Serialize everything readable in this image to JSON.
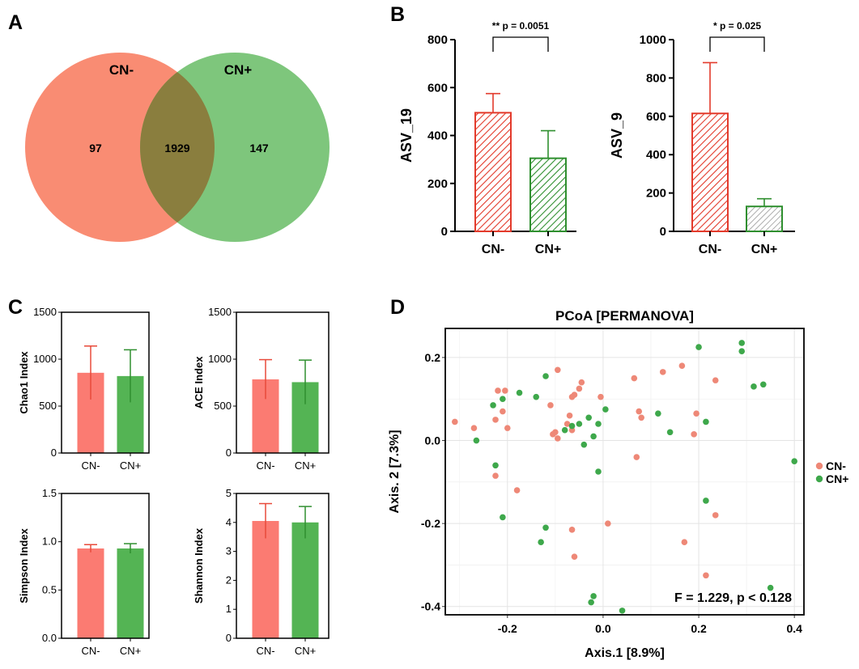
{
  "panel_labels": [
    "A",
    "B",
    "C",
    "D"
  ],
  "chart_data": [
    {
      "panel": "A",
      "type": "venn",
      "sets": [
        {
          "name": "CN-",
          "color": "#f98c73"
        },
        {
          "name": "CN+",
          "color": "#7ec67c"
        }
      ],
      "counts": {
        "only_left": "97",
        "intersection": "1929",
        "only_right": "147"
      },
      "overlap_color": "#8a7e3e"
    },
    {
      "panel": "B",
      "type": "bar",
      "ylabel": "ASV_19",
      "categories": [
        "CN-",
        "CN+"
      ],
      "values": [
        495,
        305
      ],
      "errors": [
        80,
        115
      ],
      "ylim": [
        0,
        800
      ],
      "yticks": [
        "0",
        "200",
        "400",
        "600",
        "800"
      ],
      "significance": "** p = 0.0051"
    },
    {
      "panel": "B",
      "type": "bar",
      "ylabel": "ASV_9",
      "categories": [
        "CN-",
        "CN+"
      ],
      "values": [
        615,
        130
      ],
      "errors": [
        265,
        40
      ],
      "ylim": [
        0,
        1000
      ],
      "yticks": [
        "0",
        "200",
        "400",
        "600",
        "800",
        "1000"
      ],
      "significance": "* p = 0.025"
    },
    {
      "panel": "C",
      "type": "bar",
      "ylabel": "Chao1 Index",
      "categories": [
        "CN-",
        "CN+"
      ],
      "values": [
        855,
        820
      ],
      "errors": [
        285,
        280
      ],
      "ylim": [
        0,
        1500
      ],
      "yticks": [
        "0",
        "500",
        "1000",
        "1500"
      ]
    },
    {
      "panel": "C",
      "type": "bar",
      "ylabel": "ACE Index",
      "categories": [
        "CN-",
        "CN+"
      ],
      "values": [
        785,
        755
      ],
      "errors": [
        210,
        235
      ],
      "ylim": [
        0,
        1500
      ],
      "yticks": [
        "0",
        "500",
        "1000",
        "1500"
      ]
    },
    {
      "panel": "C",
      "type": "bar",
      "ylabel": "Simpson Index",
      "categories": [
        "CN-",
        "CN+"
      ],
      "values": [
        0.93,
        0.93
      ],
      "errors": [
        0.04,
        0.05
      ],
      "ylim": [
        0,
        1.5
      ],
      "yticks": [
        "0.0",
        "0.5",
        "1.0",
        "1.5"
      ]
    },
    {
      "panel": "C",
      "type": "bar",
      "ylabel": "Shannon Index",
      "categories": [
        "CN-",
        "CN+"
      ],
      "values": [
        4.05,
        4.0
      ],
      "errors": [
        0.6,
        0.55
      ],
      "ylim": [
        0,
        5
      ],
      "yticks": [
        "0",
        "1",
        "2",
        "3",
        "4",
        "5"
      ]
    },
    {
      "panel": "D",
      "type": "scatter",
      "title": "PCoA [PERMANOVA]",
      "xlabel": "Axis.1 [8.9%]",
      "ylabel": "Axis. 2 [7.3%]",
      "xlim": [
        -0.33,
        0.42
      ],
      "ylim": [
        -0.42,
        0.27
      ],
      "xticks": [
        "-0.2",
        "0.0",
        "0.2",
        "0.4"
      ],
      "yticks": [
        "0.2",
        "0.0",
        "-0.2",
        "-0.4"
      ],
      "annotation": "F = 1.229, p < 0.128",
      "legend": [
        "CN-",
        "CN+"
      ],
      "series": [
        {
          "name": "CN-",
          "color": "#ee8877",
          "points": [
            [
              -0.31,
              0.045
            ],
            [
              -0.27,
              0.03
            ],
            [
              -0.22,
              0.12
            ],
            [
              -0.205,
              0.12
            ],
            [
              -0.225,
              0.05
            ],
            [
              -0.21,
              0.07
            ],
            [
              -0.2,
              0.03
            ],
            [
              -0.225,
              -0.085
            ],
            [
              -0.18,
              -0.12
            ],
            [
              -0.105,
              0.015
            ],
            [
              -0.11,
              0.085
            ],
            [
              -0.1,
              0.02
            ],
            [
              -0.095,
              0.17
            ],
            [
              -0.095,
              0.005
            ],
            [
              -0.07,
              0.06
            ],
            [
              -0.065,
              0.105
            ],
            [
              -0.06,
              0.11
            ],
            [
              -0.05,
              0.125
            ],
            [
              -0.045,
              0.14
            ],
            [
              -0.065,
              0.025
            ],
            [
              -0.005,
              0.105
            ],
            [
              -0.065,
              -0.215
            ],
            [
              -0.06,
              -0.28
            ],
            [
              0.01,
              -0.2
            ],
            [
              0.065,
              0.15
            ],
            [
              0.075,
              0.07
            ],
            [
              0.08,
              0.055
            ],
            [
              0.07,
              -0.04
            ],
            [
              0.125,
              0.165
            ],
            [
              0.165,
              0.18
            ],
            [
              0.195,
              0.065
            ],
            [
              0.19,
              0.015
            ],
            [
              0.235,
              0.145
            ],
            [
              0.17,
              -0.245
            ],
            [
              0.235,
              -0.18
            ],
            [
              0.215,
              -0.325
            ],
            [
              -0.075,
              0.04
            ]
          ]
        },
        {
          "name": "CN+",
          "color": "#3ea84b",
          "points": [
            [
              -0.265,
              0.0
            ],
            [
              -0.23,
              0.085
            ],
            [
              -0.21,
              0.1
            ],
            [
              -0.175,
              0.115
            ],
            [
              -0.21,
              -0.185
            ],
            [
              -0.225,
              -0.06
            ],
            [
              -0.14,
              0.105
            ],
            [
              -0.12,
              0.155
            ],
            [
              -0.12,
              -0.21
            ],
            [
              -0.13,
              -0.245
            ],
            [
              -0.08,
              0.025
            ],
            [
              -0.065,
              0.035
            ],
            [
              -0.05,
              0.04
            ],
            [
              -0.02,
              0.01
            ],
            [
              -0.03,
              0.055
            ],
            [
              -0.01,
              0.04
            ],
            [
              0.005,
              0.075
            ],
            [
              -0.01,
              -0.075
            ],
            [
              -0.02,
              -0.375
            ],
            [
              -0.025,
              -0.39
            ],
            [
              0.04,
              -0.41
            ],
            [
              0.115,
              0.065
            ],
            [
              0.14,
              0.02
            ],
            [
              0.2,
              0.225
            ],
            [
              0.215,
              0.045
            ],
            [
              0.215,
              -0.145
            ],
            [
              0.29,
              0.235
            ],
            [
              0.29,
              0.215
            ],
            [
              0.315,
              0.13
            ],
            [
              0.335,
              0.135
            ],
            [
              0.35,
              -0.355
            ],
            [
              0.4,
              -0.05
            ],
            [
              -0.04,
              -0.01
            ]
          ]
        }
      ]
    }
  ]
}
